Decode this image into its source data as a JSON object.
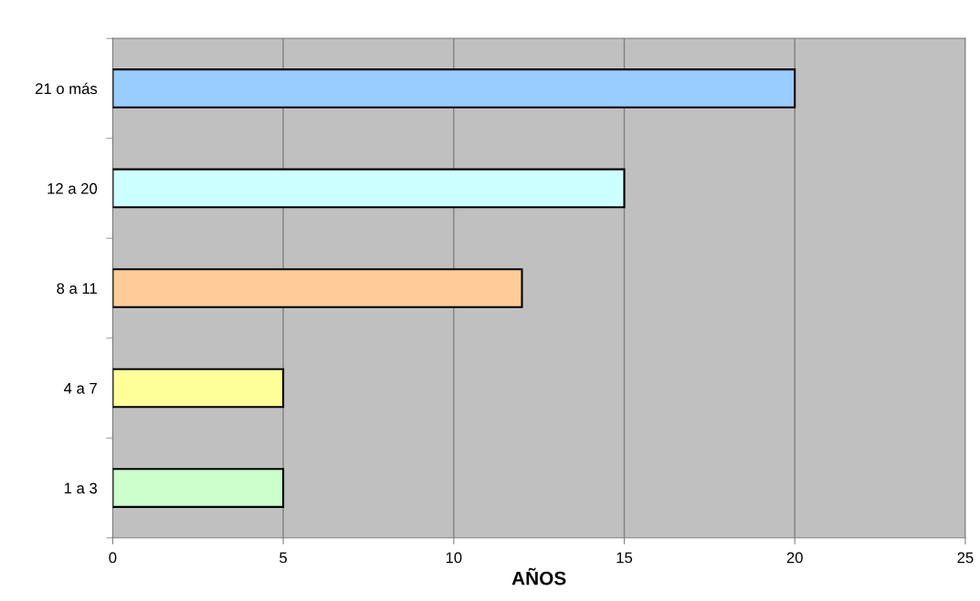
{
  "chart_data": {
    "type": "bar",
    "orientation": "horizontal",
    "xlabel": "AÑOS",
    "categories": [
      "21 o más",
      "12 a 20",
      "8 a 11",
      "4 a 7",
      "1 a 3"
    ],
    "values": [
      20,
      15,
      12,
      5,
      5
    ],
    "colors": [
      "#99ccff",
      "#ccffff",
      "#ffcc99",
      "#ffff99",
      "#ccffcc"
    ],
    "xlim": [
      0,
      25
    ],
    "xticks": [
      0,
      5,
      10,
      15,
      20,
      25
    ],
    "grid": "x",
    "legend": false
  }
}
